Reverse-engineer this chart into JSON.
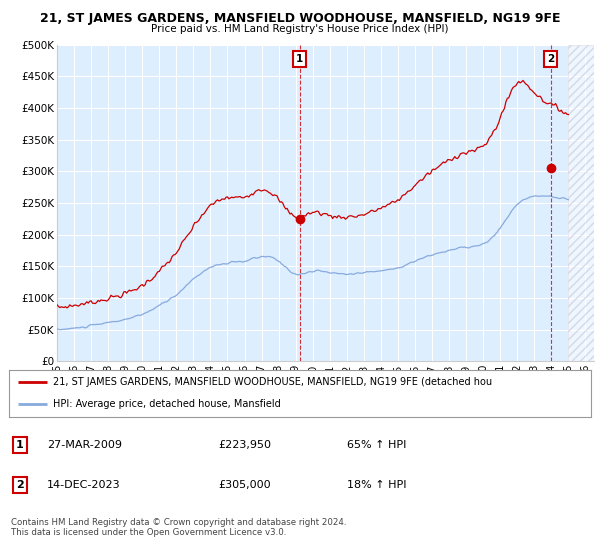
{
  "title": "21, ST JAMES GARDENS, MANSFIELD WOODHOUSE, MANSFIELD, NG19 9FE",
  "subtitle": "Price paid vs. HM Land Registry's House Price Index (HPI)",
  "legend_line1": "21, ST JAMES GARDENS, MANSFIELD WOODHOUSE, MANSFIELD, NG19 9FE (detached hou",
  "legend_line2": "HPI: Average price, detached house, Mansfield",
  "annotation1_label": "1",
  "annotation1_date": "27-MAR-2009",
  "annotation1_price": "£223,950",
  "annotation1_hpi": "65% ↑ HPI",
  "annotation2_label": "2",
  "annotation2_date": "14-DEC-2023",
  "annotation2_price": "£305,000",
  "annotation2_hpi": "18% ↑ HPI",
  "footer": "Contains HM Land Registry data © Crown copyright and database right 2024.\nThis data is licensed under the Open Government Licence v3.0.",
  "xlim": [
    1995.0,
    2026.5
  ],
  "ylim": [
    0,
    500000
  ],
  "yticks": [
    0,
    50000,
    100000,
    150000,
    200000,
    250000,
    300000,
    350000,
    400000,
    450000,
    500000
  ],
  "ytick_labels": [
    "£0",
    "£50K",
    "£100K",
    "£150K",
    "£200K",
    "£250K",
    "£300K",
    "£350K",
    "£400K",
    "£450K",
    "£500K"
  ],
  "red_color": "#cc0000",
  "blue_color": "#88aadd",
  "background_color": "#ddeeff",
  "hatch_start_year": 2025.0,
  "sale1_x": 2009.23,
  "sale1_y": 223950,
  "sale2_x": 2023.95,
  "sale2_y": 305000
}
